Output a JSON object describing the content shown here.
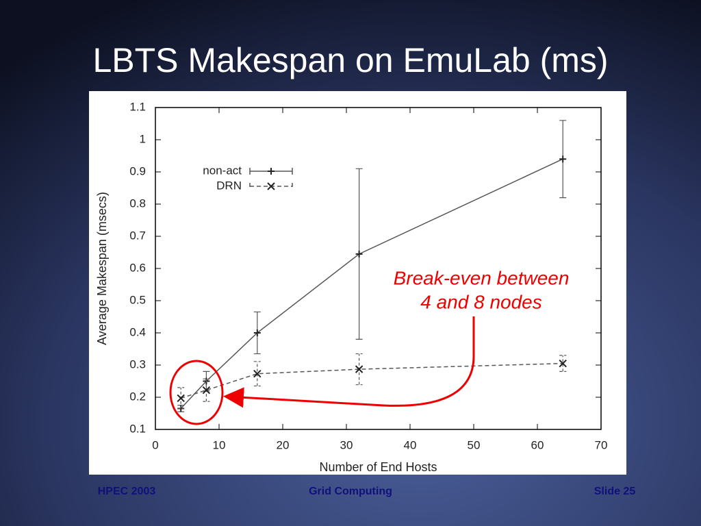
{
  "slide": {
    "title": "LBTS Makespan on EmuLab (ms)",
    "footer_left": "HPEC 2003",
    "footer_center": "Grid Computing",
    "footer_right": "Slide 25"
  },
  "chart_data": {
    "type": "line",
    "x_label": "Number of End Hosts",
    "y_label": "Average Makespan (msecs)",
    "annotation": [
      "Break-even between",
      "4 and 8 nodes"
    ],
    "x": [
      4,
      8,
      16,
      32,
      64
    ],
    "series": [
      {
        "name": "non-act",
        "color": "#555555",
        "linestyle": "solid",
        "marker": "plus",
        "values": [
          0.165,
          0.25,
          0.4,
          0.645,
          0.94
        ],
        "errors": [
          0.01,
          0.03,
          0.065,
          0.265,
          0.12
        ]
      },
      {
        "name": "DRN",
        "color": "#555555",
        "linestyle": "dashed",
        "marker": "cross",
        "values": [
          0.197,
          0.222,
          0.273,
          0.287,
          0.305
        ],
        "errors": [
          0.033,
          0.035,
          0.038,
          0.048,
          0.025
        ]
      }
    ],
    "xlim": [
      0,
      70
    ],
    "xticks": [
      0,
      10,
      20,
      30,
      40,
      50,
      60,
      70
    ],
    "ylim": [
      0.1,
      1.1
    ],
    "yticks": [
      0.1,
      0.2,
      0.3,
      0.4,
      0.5,
      0.6,
      0.7,
      0.8,
      0.9,
      1,
      1.1
    ],
    "legend": "upper left",
    "annotation_color": "#ee0000"
  }
}
